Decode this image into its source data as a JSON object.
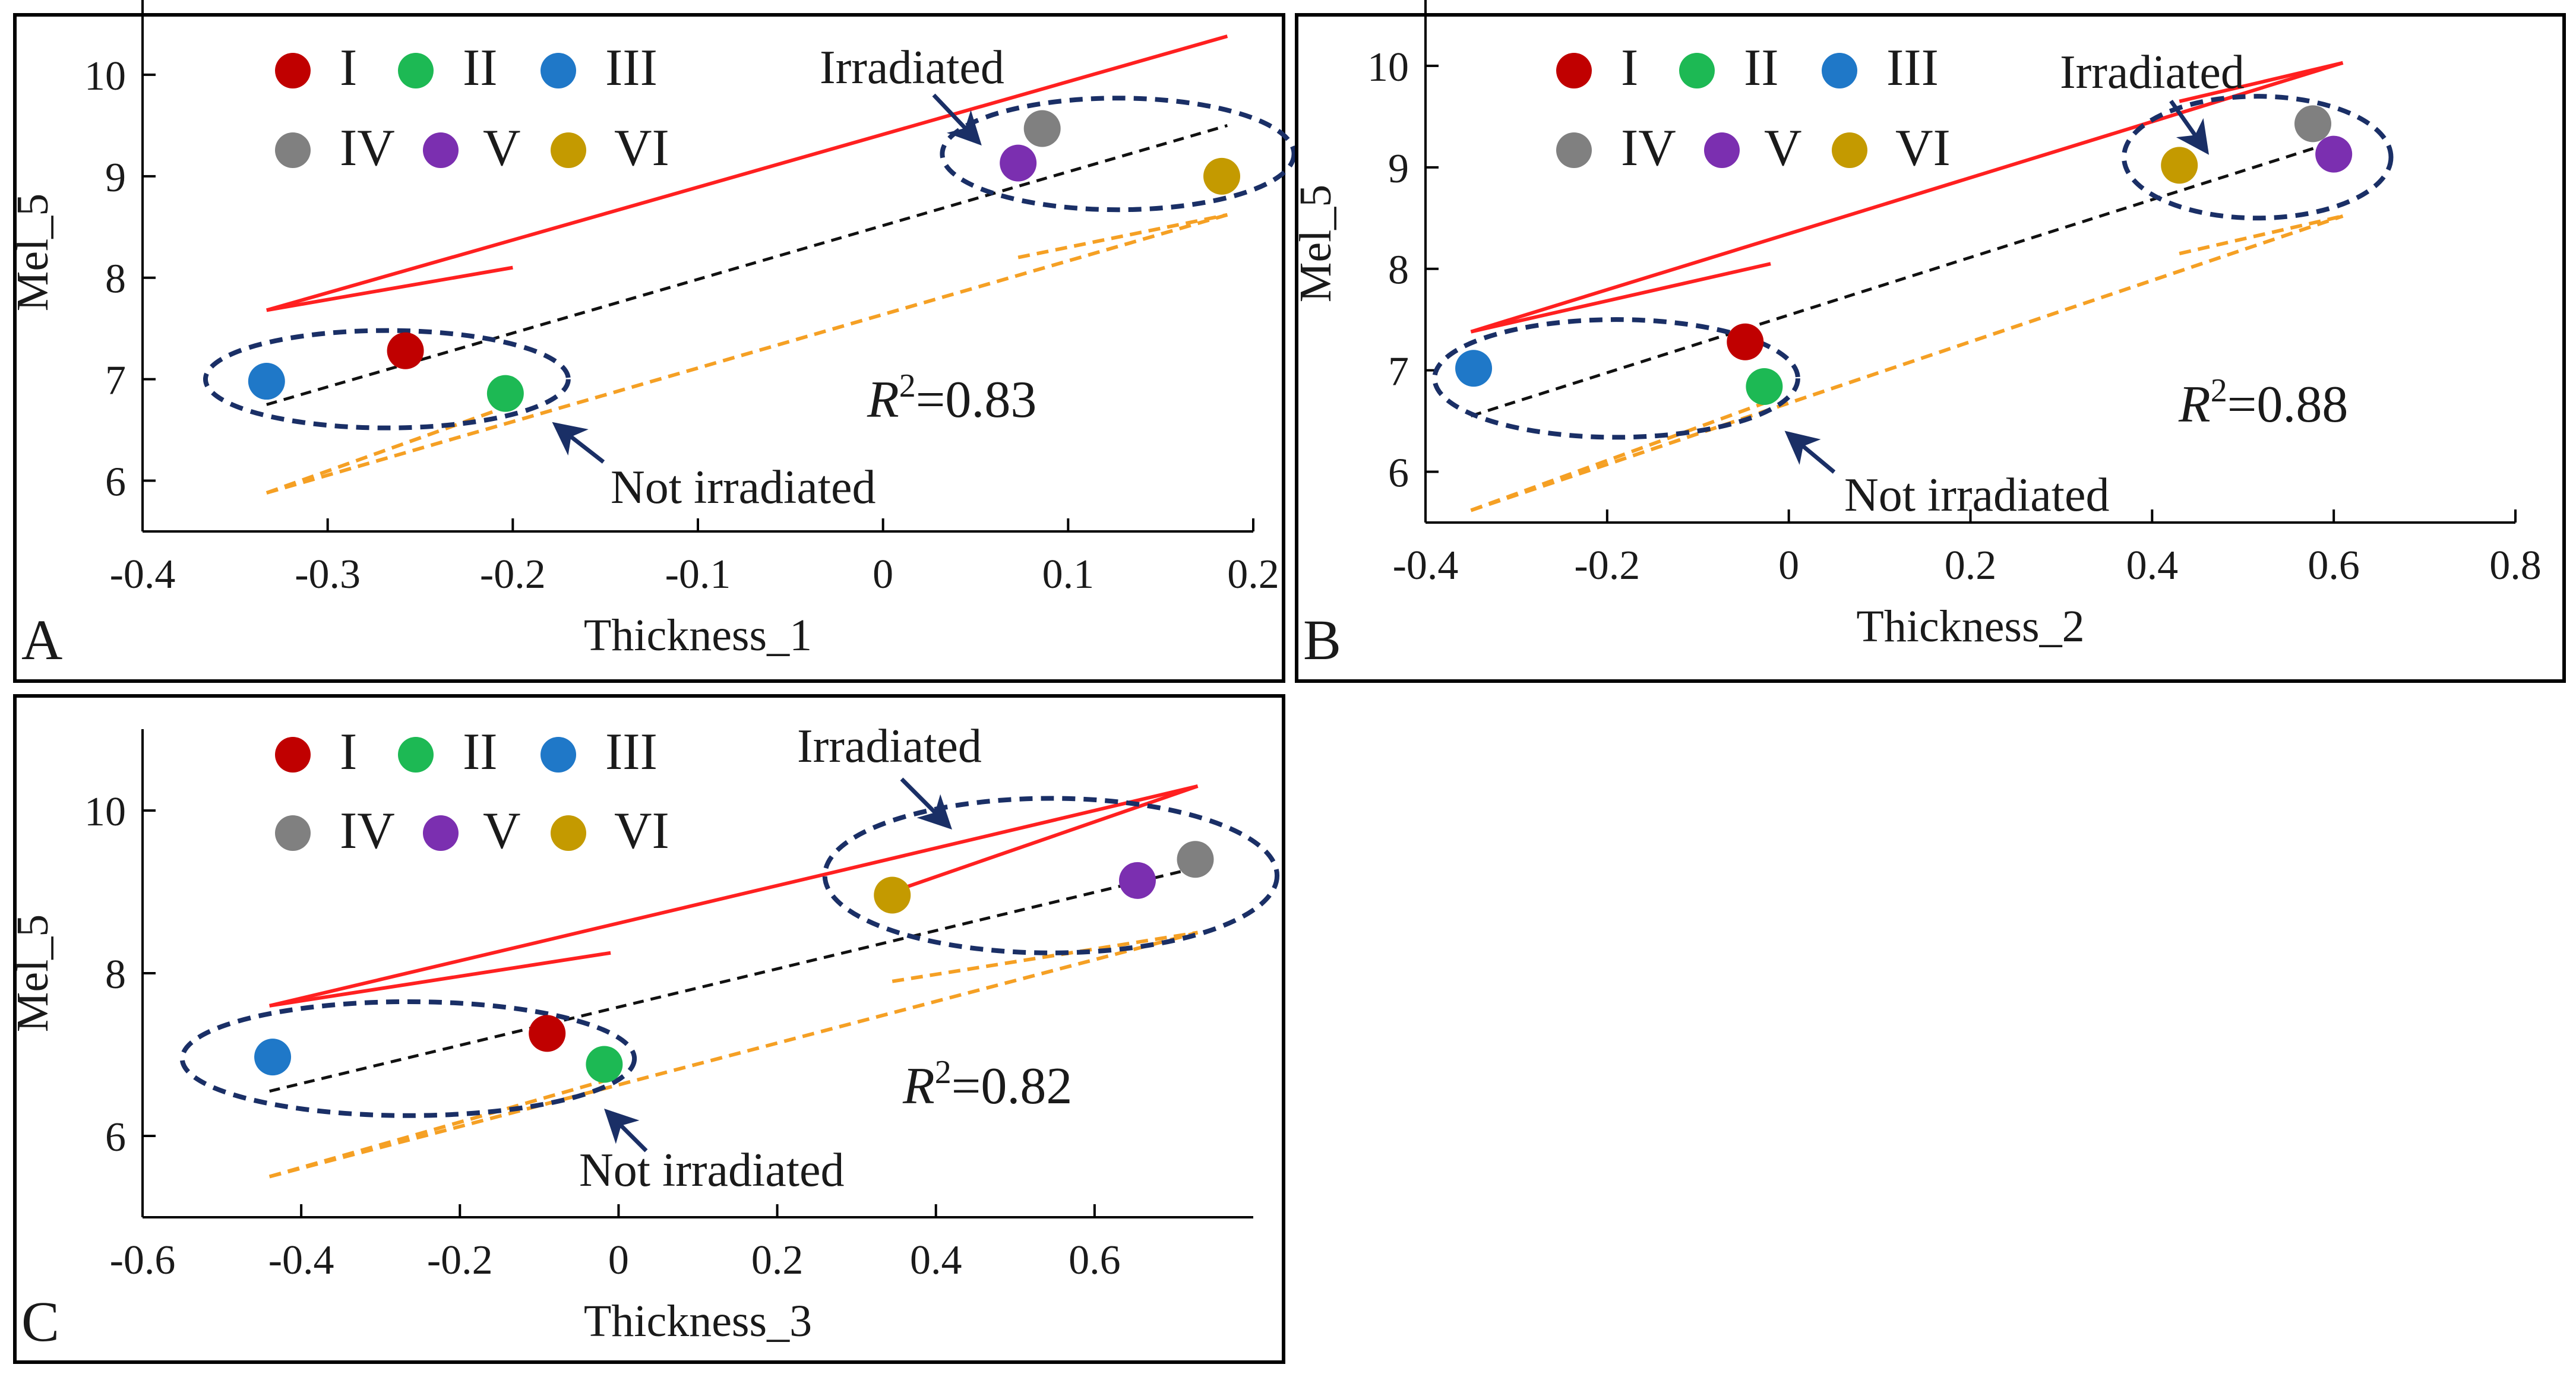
{
  "colors": {
    "I": "#c00000",
    "II": "#1db954",
    "III": "#1f78c8",
    "IV": "#808080",
    "V": "#7b2fb0",
    "VI": "#c49a00",
    "fit_upper": "#ff2020",
    "fit_lower": "#f5a024",
    "fit_main": "#111111",
    "ellipse": "#1a2f66",
    "arrow": "#1a2f66"
  },
  "legend": {
    "row1": [
      "I",
      "II",
      "III"
    ],
    "row2": [
      "IV",
      "V",
      "VI"
    ]
  },
  "chart_data": [
    {
      "panel": "A",
      "type": "scatter",
      "xlabel": "Thickness_1",
      "ylabel": "Mel_5",
      "xlim": [
        -0.4,
        0.2
      ],
      "ylim": [
        5.5,
        11
      ],
      "xticks": [
        -0.4,
        -0.3,
        -0.2,
        -0.1,
        0,
        0.1,
        0.2
      ],
      "xtick_labels": [
        "-0.4",
        "-0.3",
        "-0.2",
        "-0.1",
        "0",
        "0.1",
        "0.2"
      ],
      "yticks": [
        6,
        7,
        8,
        9,
        10
      ],
      "ytick_labels": [
        "6",
        "7",
        "8",
        "9",
        "10"
      ],
      "points": [
        {
          "label": "I",
          "x": -0.258,
          "y": 7.28
        },
        {
          "label": "II",
          "x": -0.204,
          "y": 6.86
        },
        {
          "label": "III",
          "x": -0.333,
          "y": 6.98
        },
        {
          "label": "IV",
          "x": 0.086,
          "y": 9.47
        },
        {
          "label": "V",
          "x": 0.073,
          "y": 9.13
        },
        {
          "label": "VI",
          "x": 0.183,
          "y": 9.0
        }
      ],
      "fit": {
        "x": [
          -0.333,
          0.186
        ],
        "y": [
          6.75,
          9.5
        ]
      },
      "band_upper": [
        {
          "x": [
            -0.333,
            0.186
          ],
          "y": [
            7.68,
            10.38
          ]
        },
        {
          "x": [
            -0.333,
            -0.2
          ],
          "y": [
            7.68,
            8.1
          ]
        }
      ],
      "band_lower": [
        {
          "x": [
            -0.333,
            0.186
          ],
          "y": [
            5.88,
            8.62
          ]
        },
        {
          "x": [
            -0.333,
            -0.2
          ],
          "y": [
            5.88,
            6.75
          ]
        },
        {
          "x": [
            0.073,
            0.186
          ],
          "y": [
            8.2,
            8.62
          ]
        }
      ],
      "clusters": [
        {
          "name": "Irradiated",
          "cx": 0.127,
          "cy": 9.22,
          "rx": 0.095,
          "ry": 0.55
        },
        {
          "name": "Not irradiated",
          "cx": -0.268,
          "cy": 7.0,
          "rx": 0.098,
          "ry": 0.48
        }
      ],
      "annotations": {
        "irradiated": "Irradiated",
        "not_irradiated": "Not irradiated",
        "r2_value": "=0.83"
      }
    },
    {
      "panel": "B",
      "type": "scatter",
      "xlabel": "Thickness_2",
      "ylabel": "Mel_5",
      "xlim": [
        -0.4,
        0.8
      ],
      "ylim": [
        5.5,
        11
      ],
      "xticks": [
        -0.4,
        -0.2,
        0,
        0.2,
        0.4,
        0.6,
        0.8
      ],
      "xtick_labels": [
        "-0.4",
        "-0.2",
        "0",
        "0.2",
        "0.4",
        "0.6",
        "0.8"
      ],
      "yticks": [
        6,
        7,
        8,
        9,
        10
      ],
      "ytick_labels": [
        "6",
        "7",
        "8",
        "9",
        "10"
      ],
      "points": [
        {
          "label": "I",
          "x": -0.048,
          "y": 7.28
        },
        {
          "label": "II",
          "x": -0.027,
          "y": 6.84
        },
        {
          "label": "III",
          "x": -0.347,
          "y": 7.02
        },
        {
          "label": "IV",
          "x": 0.577,
          "y": 9.43
        },
        {
          "label": "V",
          "x": 0.6,
          "y": 9.13
        },
        {
          "label": "VI",
          "x": 0.43,
          "y": 9.02
        }
      ],
      "fit": {
        "x": [
          -0.35,
          0.6
        ],
        "y": [
          6.55,
          9.25
        ]
      },
      "band_upper": [
        {
          "x": [
            -0.35,
            0.61
          ],
          "y": [
            7.38,
            10.03
          ]
        },
        {
          "x": [
            -0.35,
            -0.02
          ],
          "y": [
            7.38,
            8.05
          ]
        },
        {
          "x": [
            0.43,
            0.61
          ],
          "y": [
            9.65,
            10.03
          ]
        }
      ],
      "band_lower": [
        {
          "x": [
            -0.35,
            0.61
          ],
          "y": [
            5.62,
            8.52
          ]
        },
        {
          "x": [
            -0.35,
            -0.02
          ],
          "y": [
            5.62,
            6.7
          ]
        },
        {
          "x": [
            0.43,
            0.61
          ],
          "y": [
            8.15,
            8.52
          ]
        }
      ],
      "clusters": [
        {
          "name": "Irradiated",
          "cx": 0.516,
          "cy": 9.1,
          "rx": 0.147,
          "ry": 0.6
        },
        {
          "name": "Not irradiated",
          "cx": -0.19,
          "cy": 6.92,
          "rx": 0.2,
          "ry": 0.58
        }
      ],
      "annotations": {
        "irradiated": "Irradiated",
        "not_irradiated": "Not irradiated",
        "r2_value": "=0.88"
      }
    },
    {
      "panel": "C",
      "type": "scatter",
      "xlabel": "Thickness_3",
      "ylabel": "Mel_5",
      "xlim": [
        -0.6,
        0.8
      ],
      "ylim": [
        5,
        11
      ],
      "xticks": [
        -0.6,
        -0.4,
        -0.2,
        0,
        0.2,
        0.4,
        0.6
      ],
      "xtick_labels": [
        "-0.6",
        "-0.4",
        "-0.2",
        "0",
        "0.2",
        "0.4",
        "0.6"
      ],
      "yticks": [
        6,
        8,
        10
      ],
      "ytick_labels": [
        "6",
        "8",
        "10"
      ],
      "points": [
        {
          "label": "I",
          "x": -0.09,
          "y": 7.26
        },
        {
          "label": "II",
          "x": -0.018,
          "y": 6.88
        },
        {
          "label": "III",
          "x": -0.436,
          "y": 6.97
        },
        {
          "label": "IV",
          "x": 0.727,
          "y": 9.4
        },
        {
          "label": "V",
          "x": 0.654,
          "y": 9.14
        },
        {
          "label": "VI",
          "x": 0.345,
          "y": 8.96
        }
      ],
      "fit": {
        "x": [
          -0.44,
          0.73
        ],
        "y": [
          6.55,
          9.3
        ]
      },
      "band_upper": [
        {
          "x": [
            -0.44,
            0.73
          ],
          "y": [
            7.6,
            10.3
          ]
        },
        {
          "x": [
            -0.44,
            -0.01
          ],
          "y": [
            7.6,
            8.25
          ]
        },
        {
          "x": [
            0.345,
            0.73
          ],
          "y": [
            9.0,
            10.3
          ]
        }
      ],
      "band_lower": [
        {
          "x": [
            -0.44,
            0.73
          ],
          "y": [
            5.5,
            8.5
          ]
        },
        {
          "x": [
            -0.44,
            -0.01
          ],
          "y": [
            5.5,
            6.7
          ]
        },
        {
          "x": [
            0.345,
            0.73
          ],
          "y": [
            7.9,
            8.5
          ]
        }
      ],
      "clusters": [
        {
          "name": "Irradiated",
          "cx": 0.545,
          "cy": 9.2,
          "rx": 0.285,
          "ry": 0.95
        },
        {
          "name": "Not irradiated",
          "cx": -0.265,
          "cy": 6.95,
          "rx": 0.285,
          "ry": 0.7
        }
      ],
      "annotations": {
        "irradiated": "Irradiated",
        "not_irradiated": "Not irradiated",
        "r2_value": "=0.82"
      }
    }
  ]
}
